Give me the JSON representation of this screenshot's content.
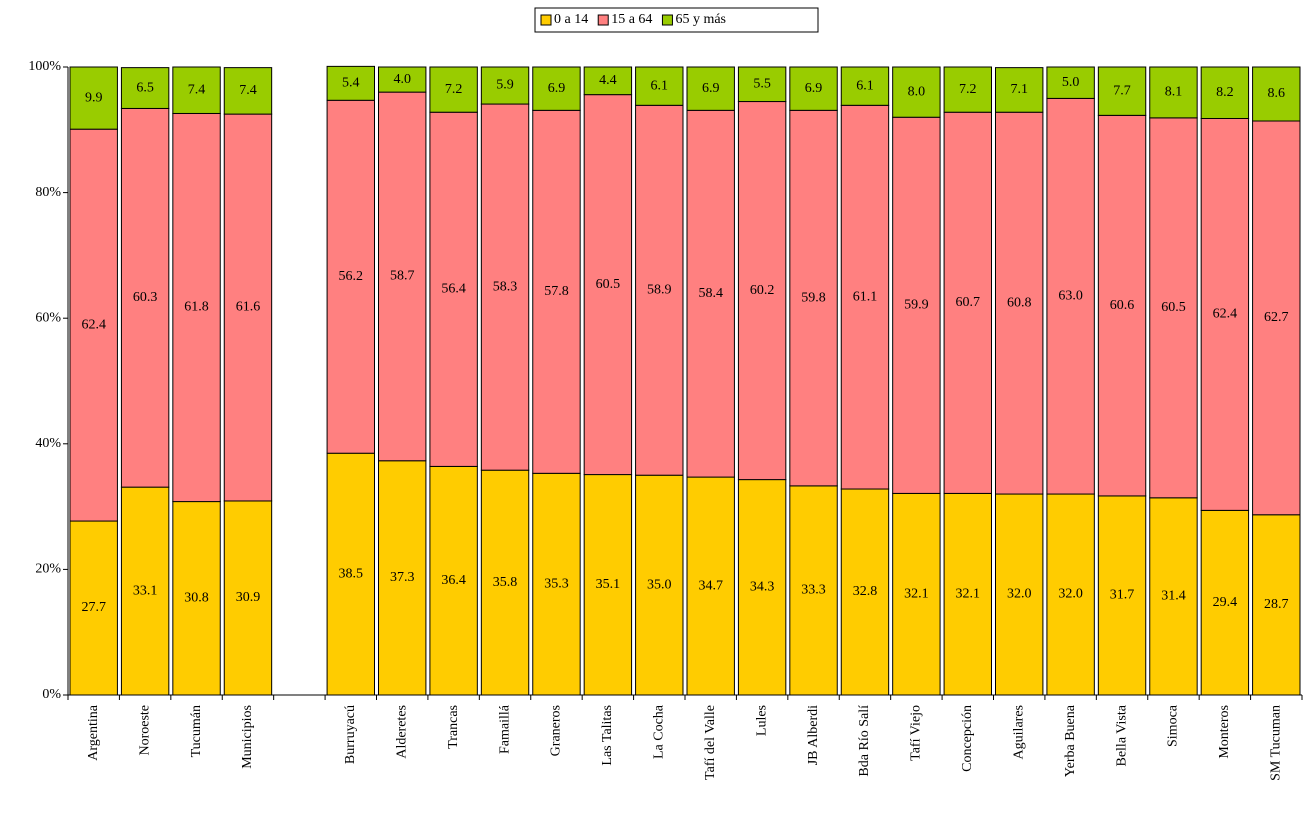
{
  "chart_data": {
    "type": "stacked_bar",
    "categories": [
      "Argentina",
      "Noroeste",
      "Tucumán",
      "Municipios",
      null,
      "Burruyacú",
      "Alderetes",
      "Trancas",
      "Famaillá",
      "Graneros",
      "Las Talitas",
      "La Cocha",
      "Tafí del Valle",
      "Lules",
      "JB Alberdi",
      "Bda Río Salí",
      "Tafí Viejo",
      "Concepción",
      "Aguilares",
      "Yerba Buena",
      "Bella Vista",
      "Simoca",
      "Monteros",
      "SM Tucuman"
    ],
    "series": [
      {
        "name": "0 a 14",
        "color": "#ffcc00",
        "values": [
          27.7,
          33.1,
          30.8,
          30.9,
          null,
          38.5,
          37.3,
          36.4,
          35.8,
          35.3,
          35.1,
          35.0,
          34.7,
          34.3,
          33.3,
          32.8,
          32.1,
          32.1,
          32.0,
          32.0,
          31.7,
          31.4,
          29.4,
          28.7
        ],
        "value_labels": [
          "27.7",
          "33.1",
          "30.8",
          "30.9",
          null,
          "38.5",
          "37.3",
          "36.4",
          "35.8",
          "35.3",
          "35.1",
          "35.0",
          "34.7",
          "34.3",
          "33.3",
          "32.8",
          "32.1",
          "32.1",
          "32.0",
          "32.0",
          "31.7",
          "31.4",
          "29.4",
          "28.7"
        ]
      },
      {
        "name": "15 a 64",
        "color": "#ff8080",
        "values": [
          62.4,
          60.3,
          61.8,
          61.6,
          null,
          56.2,
          58.7,
          56.4,
          58.3,
          57.8,
          60.5,
          58.9,
          58.4,
          60.2,
          59.8,
          61.1,
          59.9,
          60.7,
          60.8,
          63.0,
          60.6,
          60.5,
          62.4,
          62.7
        ],
        "value_labels": [
          "62.4",
          "60.3",
          "61.8",
          "61.6",
          null,
          "56.2",
          "58.7",
          "56.4",
          "58.3",
          "57.8",
          "60.5",
          "58.9",
          "58.4",
          "60.2",
          "59.8",
          "61.1",
          "59.9",
          "60.7",
          "60.8",
          "63.0",
          "60.6",
          "60.5",
          "62.4",
          "62.7"
        ]
      },
      {
        "name": "65 y más",
        "color": "#99cc00",
        "values": [
          9.9,
          6.5,
          7.4,
          7.4,
          null,
          5.4,
          4.0,
          7.2,
          5.9,
          6.9,
          4.4,
          6.1,
          6.9,
          5.5,
          6.9,
          6.1,
          8.0,
          7.2,
          7.1,
          5.0,
          7.7,
          8.1,
          8.2,
          8.6
        ],
        "value_labels": [
          "9.9",
          "6.5",
          "7.4",
          "7.4",
          null,
          "5.4",
          "4.0",
          "7.2",
          "5.9",
          "6.9",
          "4.4",
          "6.1",
          "6.9",
          "5.5",
          "6.9",
          "6.1",
          "8.0",
          "7.2",
          "7.1",
          "5.0",
          "7.7",
          "8.1",
          "8.2",
          "8.6"
        ]
      }
    ],
    "ylim": [
      0,
      100
    ],
    "yticks": [
      {
        "value": 0,
        "label": "0%"
      },
      {
        "value": 20,
        "label": "20%"
      },
      {
        "value": 40,
        "label": "40%"
      },
      {
        "value": 60,
        "label": "60%"
      },
      {
        "value": 80,
        "label": "80%"
      },
      {
        "value": 100,
        "label": "100%"
      }
    ],
    "legend": "top"
  }
}
